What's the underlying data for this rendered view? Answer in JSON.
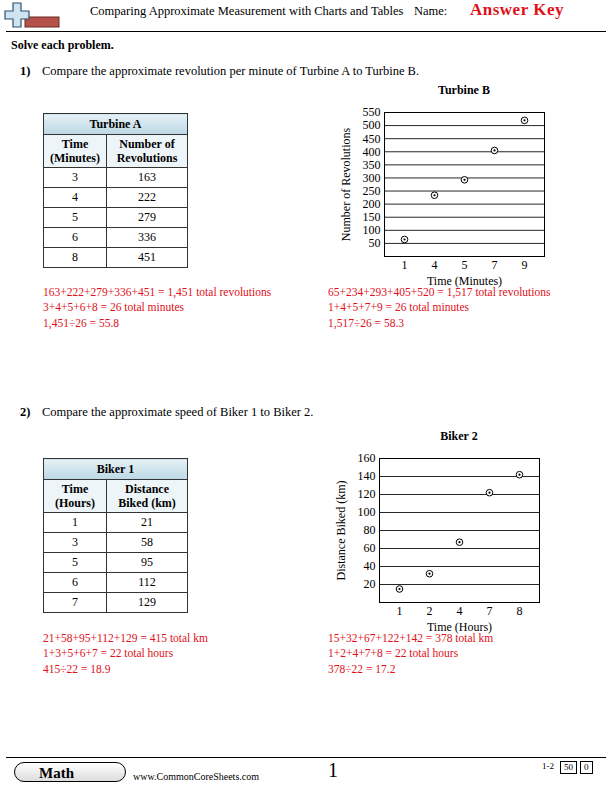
{
  "header": {
    "title": "Comparing Approximate Measurement with Charts and Tables",
    "name_label": "Name:",
    "answer_key": "Answer Key",
    "instructions": "Solve each problem."
  },
  "problems": [
    {
      "number": "1)",
      "question": "Compare the approximate revolution per minute of Turbine A to Turbine B.",
      "table": {
        "title": "Turbine A",
        "columns": [
          "Time (Minutes)",
          "Number of Revolutions"
        ],
        "rows": [
          [
            3,
            163
          ],
          [
            4,
            222
          ],
          [
            5,
            279
          ],
          [
            6,
            336
          ],
          [
            8,
            451
          ]
        ]
      },
      "table_answers": [
        "163+222+279+336+451 = 1,451 total revolutions",
        "3+4+5+6+8 = 26 total minutes",
        "1,451÷26 = 55.8"
      ],
      "chart_answers": [
        "65+234+293+405+520 = 1,517 total revolutions",
        "1+4+5+7+9 = 26 total minutes",
        "1,517÷26 = 58.3"
      ]
    },
    {
      "number": "2)",
      "question": "Compare the approximate speed of Biker 1 to Biker 2.",
      "table": {
        "title": "Biker 1",
        "columns": [
          "Time (Hours)",
          "Distance Biked (km)"
        ],
        "rows": [
          [
            1,
            21
          ],
          [
            3,
            58
          ],
          [
            5,
            95
          ],
          [
            6,
            112
          ],
          [
            7,
            129
          ]
        ]
      },
      "table_answers": [
        "21+58+95+112+129 = 415 total km",
        "1+3+5+6+7 = 22 total hours",
        "415÷22 = 18.9"
      ],
      "chart_answers": [
        "15+32+67+122+142 = 378 total km",
        "1+2+4+7+8 = 22 total hours",
        "378÷22 = 17.2"
      ]
    }
  ],
  "chart_data": [
    {
      "type": "scatter",
      "title": "Turbine B",
      "x_label": "Time (Minutes)",
      "y_label": "Number of Revolutions",
      "categories": [
        "1",
        "4",
        "5",
        "7",
        "9"
      ],
      "values": [
        65,
        234,
        293,
        405,
        520
      ],
      "ylim": [
        0,
        550
      ],
      "yticks": [
        50,
        100,
        150,
        200,
        250,
        300,
        350,
        400,
        450,
        500,
        550
      ],
      "grid": true,
      "color": "#000000",
      "marker": "circle_dot"
    },
    {
      "type": "scatter",
      "title": "Biker 2",
      "x_label": "Time (Hours)",
      "y_label": "Distance Biked (km)",
      "categories": [
        "1",
        "2",
        "4",
        "7",
        "8"
      ],
      "values": [
        15,
        32,
        67,
        122,
        142
      ],
      "ylim": [
        0,
        160
      ],
      "yticks": [
        20,
        40,
        60,
        80,
        100,
        120,
        140,
        160
      ],
      "grid": true,
      "color": "#000000",
      "marker": "circle_dot"
    }
  ],
  "footer": {
    "subject": "Math",
    "website": "www.CommonCoreSheets.com",
    "page": "1",
    "codes": [
      "1-2",
      "50",
      "0"
    ]
  }
}
